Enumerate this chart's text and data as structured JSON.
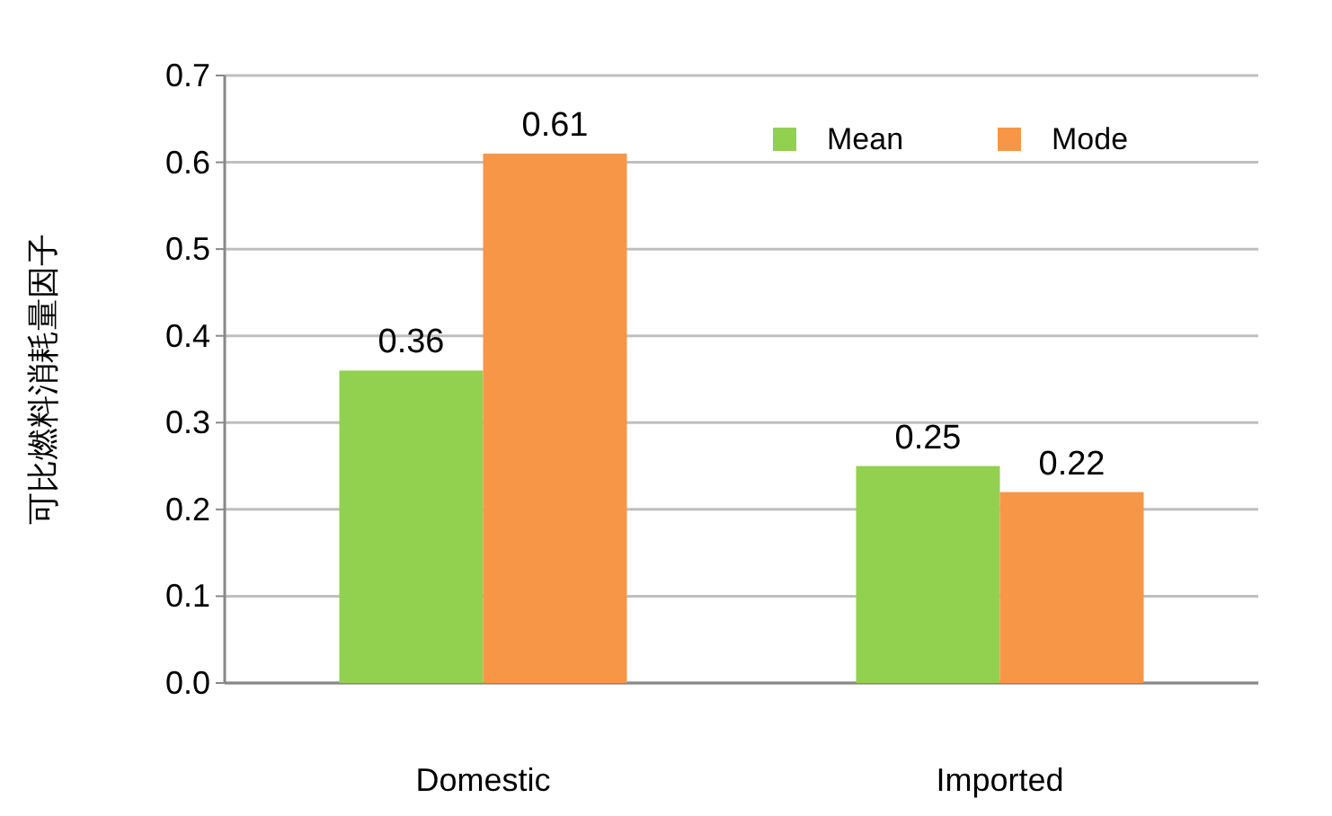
{
  "chart_data": {
    "type": "bar",
    "ylabel": "可比燃料消耗量因子",
    "categories": [
      "Domestic",
      "Imported"
    ],
    "series": [
      {
        "name": "Mean",
        "color": "#92d050",
        "values": [
          0.36,
          0.25
        ]
      },
      {
        "name": "Mode",
        "color": "#f79646",
        "values": [
          0.61,
          0.22
        ]
      }
    ],
    "ylim": [
      0,
      0.7
    ],
    "yticks": [
      {
        "value": 0,
        "label": "0.0"
      },
      0.1,
      0.2,
      0.3,
      0.4,
      0.5,
      0.6,
      0.7
    ],
    "grid": "y",
    "legend": "top right",
    "data_labels": true
  }
}
